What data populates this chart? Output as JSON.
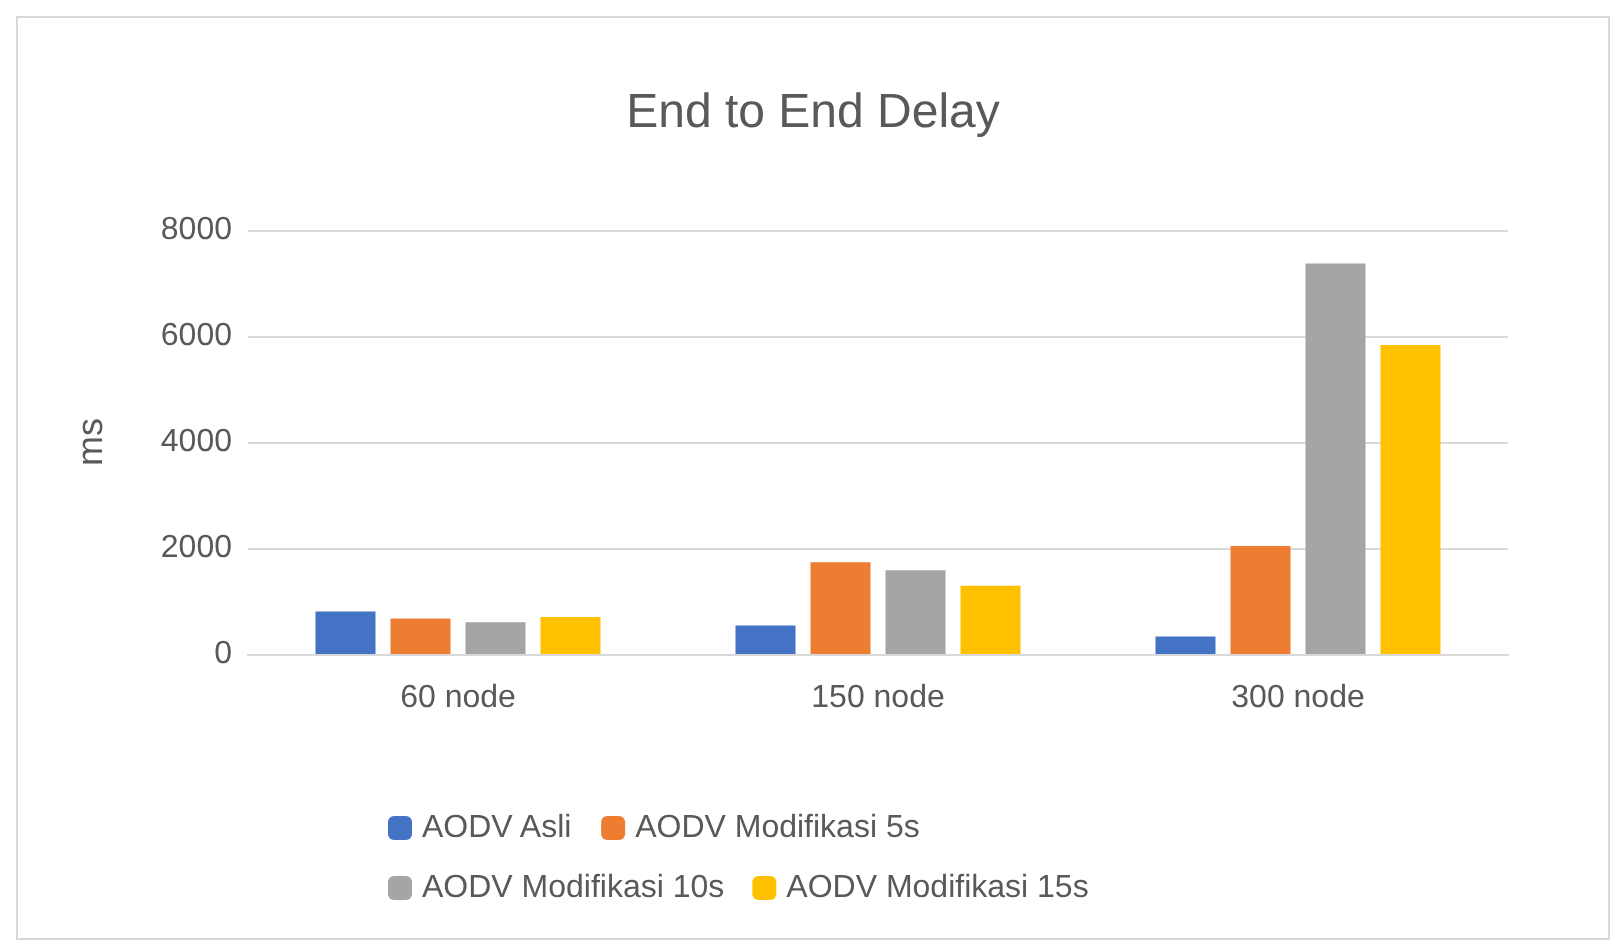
{
  "chart_data": {
    "type": "bar",
    "title": "End to End Delay",
    "ylabel": "ms",
    "categories": [
      "60 node",
      "150 node",
      "300 node"
    ],
    "series": [
      {
        "name": "AODV Asli",
        "color": "#4472c4",
        "values": [
          800,
          540,
          330
        ]
      },
      {
        "name": "AODV Modifikasi 5s",
        "color": "#ed7d31",
        "values": [
          670,
          1730,
          2040
        ]
      },
      {
        "name": "AODV Modifikasi 10s",
        "color": "#a5a5a5",
        "values": [
          600,
          1580,
          7370
        ]
      },
      {
        "name": "AODV Modifikasi 15s",
        "color": "#ffc000",
        "values": [
          700,
          1290,
          5830
        ]
      }
    ],
    "ylim": [
      0,
      8000
    ],
    "yticks": [
      0,
      2000,
      4000,
      6000,
      8000
    ],
    "grid": "y",
    "legend": "bottom"
  }
}
